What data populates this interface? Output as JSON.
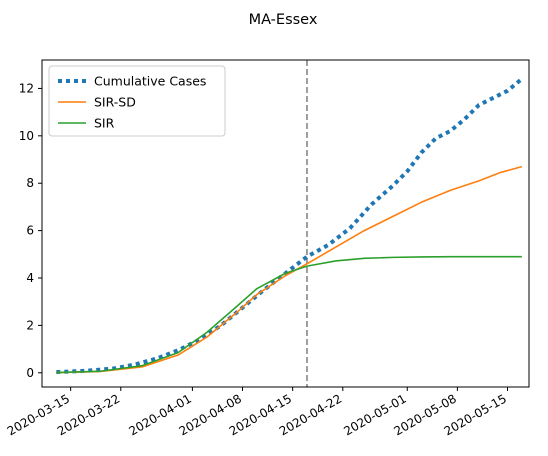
{
  "chart_data": {
    "type": "line",
    "title": "MA-Essex",
    "xlabel": "",
    "ylabel": "",
    "x_ticks": [
      "2020-03-15",
      "2020-03-22",
      "2020-04-01",
      "2020-04-08",
      "2020-04-15",
      "2020-04-22",
      "2020-05-01",
      "2020-05-08",
      "2020-05-15"
    ],
    "y_ticks": [
      0,
      2,
      4,
      6,
      8,
      10,
      12
    ],
    "xlim": [
      "2020-03-11",
      "2020-05-18"
    ],
    "ylim": [
      -0.6,
      13.2
    ],
    "grid": false,
    "legend_position": "top-left",
    "vline": {
      "x": "2020-04-17",
      "color": "#7f7f7f",
      "style": "dashed"
    },
    "series": [
      {
        "name": "Cumulative Cases",
        "color": "#1f77b4",
        "style": "dotted",
        "points": [
          [
            "2020-03-13",
            0.03
          ],
          [
            "2020-03-17",
            0.08
          ],
          [
            "2020-03-21",
            0.18
          ],
          [
            "2020-03-24",
            0.35
          ],
          [
            "2020-03-27",
            0.6
          ],
          [
            "2020-03-30",
            0.95
          ],
          [
            "2020-04-02",
            1.4
          ],
          [
            "2020-04-05",
            2.0
          ],
          [
            "2020-04-08",
            2.75
          ],
          [
            "2020-04-11",
            3.5
          ],
          [
            "2020-04-14",
            4.2
          ],
          [
            "2020-04-17",
            4.9
          ],
          [
            "2020-04-20",
            5.4
          ],
          [
            "2020-04-23",
            6.1
          ],
          [
            "2020-04-26",
            7.1
          ],
          [
            "2020-04-29",
            7.9
          ],
          [
            "2020-05-01",
            8.5
          ],
          [
            "2020-05-03",
            9.3
          ],
          [
            "2020-05-05",
            9.9
          ],
          [
            "2020-05-07",
            10.2
          ],
          [
            "2020-05-09",
            10.7
          ],
          [
            "2020-05-11",
            11.3
          ],
          [
            "2020-05-13",
            11.6
          ],
          [
            "2020-05-15",
            11.9
          ],
          [
            "2020-05-17",
            12.4
          ]
        ]
      },
      {
        "name": "SIR-SD",
        "color": "#ff7f0e",
        "style": "solid",
        "points": [
          [
            "2020-03-13",
            0.01
          ],
          [
            "2020-03-19",
            0.05
          ],
          [
            "2020-03-25",
            0.25
          ],
          [
            "2020-03-30",
            0.75
          ],
          [
            "2020-04-03",
            1.5
          ],
          [
            "2020-04-07",
            2.5
          ],
          [
            "2020-04-10",
            3.3
          ],
          [
            "2020-04-14",
            4.1
          ],
          [
            "2020-04-17",
            4.6
          ],
          [
            "2020-04-21",
            5.3
          ],
          [
            "2020-04-25",
            6.0
          ],
          [
            "2020-04-29",
            6.6
          ],
          [
            "2020-05-03",
            7.2
          ],
          [
            "2020-05-07",
            7.7
          ],
          [
            "2020-05-11",
            8.1
          ],
          [
            "2020-05-14",
            8.45
          ],
          [
            "2020-05-17",
            8.7
          ]
        ]
      },
      {
        "name": "SIR",
        "color": "#2ca02c",
        "style": "solid",
        "points": [
          [
            "2020-03-13",
            0.01
          ],
          [
            "2020-03-19",
            0.06
          ],
          [
            "2020-03-25",
            0.3
          ],
          [
            "2020-03-30",
            0.85
          ],
          [
            "2020-04-03",
            1.7
          ],
          [
            "2020-04-07",
            2.75
          ],
          [
            "2020-04-10",
            3.55
          ],
          [
            "2020-04-14",
            4.2
          ],
          [
            "2020-04-17",
            4.5
          ],
          [
            "2020-04-21",
            4.72
          ],
          [
            "2020-04-25",
            4.83
          ],
          [
            "2020-04-29",
            4.87
          ],
          [
            "2020-05-03",
            4.89
          ],
          [
            "2020-05-07",
            4.9
          ],
          [
            "2020-05-11",
            4.9
          ],
          [
            "2020-05-17",
            4.9
          ]
        ]
      }
    ]
  }
}
